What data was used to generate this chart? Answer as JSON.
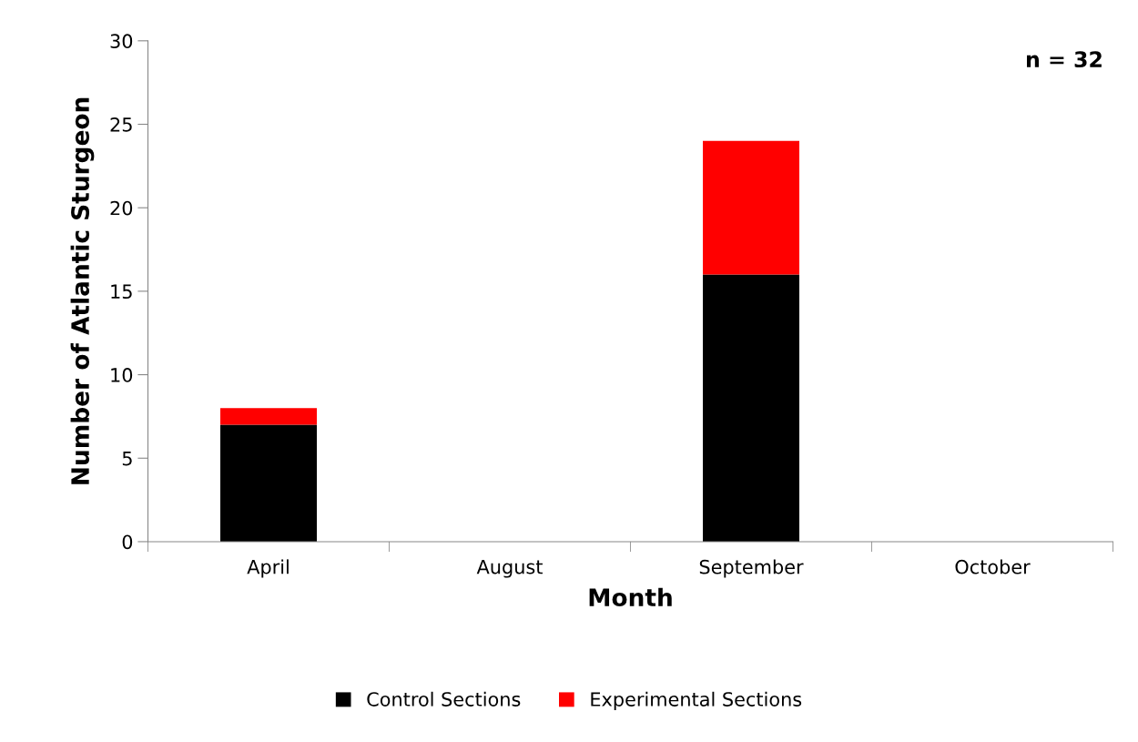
{
  "chart_data": {
    "type": "bar",
    "stacked": true,
    "xlabel": "Month",
    "ylabel": "Number of Atlantic Sturgeon",
    "categories": [
      "April",
      "August",
      "September",
      "October"
    ],
    "series": [
      {
        "name": "Control Sections",
        "color": "#000000",
        "values": [
          7,
          0,
          16,
          0
        ]
      },
      {
        "name": "Experimental Sections",
        "color": "#ff0000",
        "values": [
          1,
          0,
          8,
          0
        ]
      }
    ],
    "ylim": [
      0,
      30
    ],
    "yticks": [
      0,
      5,
      10,
      15,
      20,
      25,
      30
    ],
    "annotations": [
      "n = 32"
    ],
    "grid": false,
    "legend": "bottom"
  }
}
